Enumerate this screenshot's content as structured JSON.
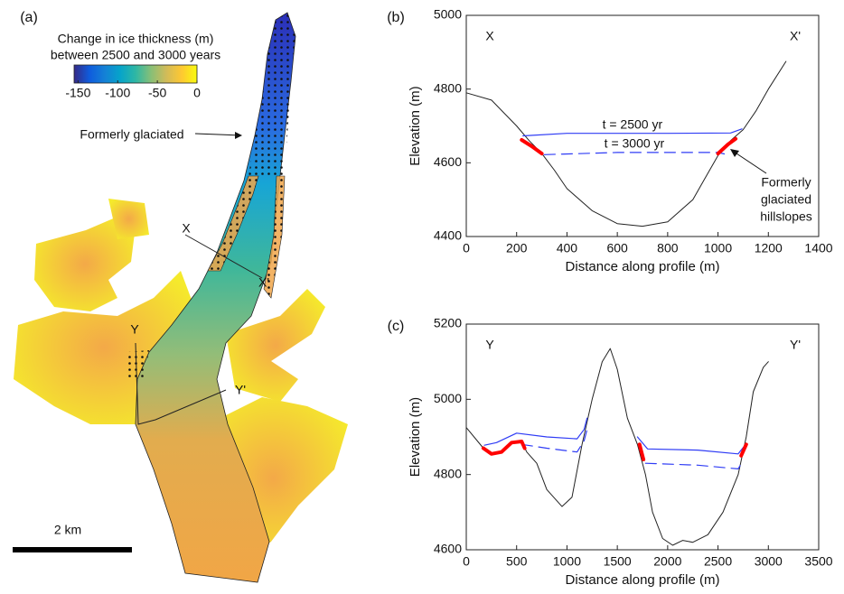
{
  "chart_data": [
    {
      "type": "map",
      "panel_label": "(a)",
      "colorbar": {
        "title": [
          "Change in ice thickness (m)",
          "between 2500 and 3000 years"
        ],
        "clim": [
          -155,
          0
        ],
        "cticks": [
          -150,
          -100,
          -50,
          0
        ],
        "colors": [
          "#352a87",
          "#0f5cdd",
          "#1481d6",
          "#06a4ca",
          "#2eb7a4",
          "#87bf77",
          "#d1bb59",
          "#fec832",
          "#f9fb0e"
        ]
      },
      "annotations": [
        "Formerly glaciated",
        "X",
        "X'",
        "Y",
        "Y'"
      ],
      "scalebar_label": "2 km"
    },
    {
      "type": "line",
      "panel_label": "(b)",
      "xlabel": "Distance along profile (m)",
      "ylabel": "Elevation (m)",
      "xlim": [
        0,
        1400
      ],
      "xticks": [
        0,
        200,
        400,
        600,
        800,
        1000,
        1200,
        1400
      ],
      "ylim": [
        4400,
        5000
      ],
      "yticks": [
        4400,
        4600,
        4800,
        5000
      ],
      "corner_labels": [
        "X",
        "X'"
      ],
      "series": [
        {
          "color": "#222222",
          "linewidth": 1,
          "x": [
            0,
            100,
            200,
            250,
            300,
            350,
            400,
            500,
            600,
            700,
            800,
            900,
            950,
            1000,
            1050,
            1100,
            1150,
            1200,
            1270
          ],
          "values": [
            4790,
            4770,
            4700,
            4660,
            4625,
            4580,
            4530,
            4470,
            4435,
            4428,
            4440,
            4500,
            4560,
            4620,
            4660,
            4690,
            4740,
            4800,
            4875
          ]
        },
        {
          "name": "t = 2500 yr",
          "color": "#2f3cf5",
          "linewidth": 1.2,
          "x": [
            225,
            400,
            800,
            1050,
            1095
          ],
          "values": [
            4673,
            4680,
            4680,
            4681,
            4692
          ]
        },
        {
          "name": "t = 3000 yr",
          "color": "#2f3cf5",
          "linewidth": 1.2,
          "dashed": true,
          "x": [
            310,
            600,
            1000,
            1025
          ],
          "values": [
            4622,
            4628,
            4628,
            4624
          ]
        },
        {
          "color": "#ff0000",
          "linewidth": 4,
          "x": [
            220,
            260,
            300,
            null,
            1000,
            1040,
            1070
          ],
          "values": [
            4662,
            4645,
            4625,
            null,
            4625,
            4650,
            4665
          ]
        }
      ],
      "annotation": [
        "Formerly",
        "glaciated",
        "hillslopes"
      ]
    },
    {
      "type": "line",
      "panel_label": "(c)",
      "xlabel": "Distance along profile (m)",
      "ylabel": "Elevation (m)",
      "xlim": [
        0,
        3500
      ],
      "xticks": [
        0,
        500,
        1000,
        1500,
        2000,
        2500,
        3000,
        3500
      ],
      "ylim": [
        4600,
        5200
      ],
      "yticks": [
        4600,
        4800,
        5000,
        5200
      ],
      "corner_labels": [
        "Y",
        "Y'"
      ],
      "series": [
        {
          "color": "#222222",
          "linewidth": 1,
          "x": [
            0,
            170,
            250,
            350,
            450,
            550,
            600,
            700,
            800,
            950,
            1050,
            1150,
            1250,
            1350,
            1430,
            1500,
            1600,
            1700,
            1780,
            1850,
            1950,
            2050,
            2150,
            2250,
            2400,
            2550,
            2700,
            2780,
            2850,
            2950,
            3000
          ],
          "values": [
            4925,
            4870,
            4855,
            4860,
            4885,
            4888,
            4860,
            4830,
            4760,
            4715,
            4740,
            4880,
            5000,
            5100,
            5135,
            5080,
            4950,
            4880,
            4800,
            4700,
            4630,
            4612,
            4625,
            4620,
            4640,
            4700,
            4800,
            4900,
            5020,
            5085,
            5100
          ]
        },
        {
          "color": "#2f3cf5",
          "linewidth": 1.2,
          "x": [
            180,
            300,
            500,
            800,
            1100,
            1170,
            1200,
            null,
            1700,
            1800,
            2300,
            2700,
            2780
          ],
          "values": [
            4878,
            4885,
            4910,
            4900,
            4895,
            4920,
            4950,
            null,
            4900,
            4868,
            4865,
            4855,
            4882
          ]
        },
        {
          "color": "#2f3cf5",
          "linewidth": 1.2,
          "dashed": true,
          "x": [
            550,
            800,
            1100,
            1170,
            1200,
            null,
            1780,
            2300,
            2700,
            2750
          ],
          "values": [
            4880,
            4870,
            4860,
            4890,
            4920,
            null,
            4830,
            4825,
            4815,
            4838
          ]
        },
        {
          "color": "#ff0000",
          "linewidth": 4,
          "x": [
            170,
            250,
            350,
            450,
            550,
            580,
            null,
            1720,
            1760,
            null,
            2730,
            2780
          ],
          "values": [
            4870,
            4855,
            4860,
            4885,
            4888,
            4870,
            null,
            4880,
            4840,
            null,
            4850,
            4880
          ]
        }
      ]
    }
  ]
}
